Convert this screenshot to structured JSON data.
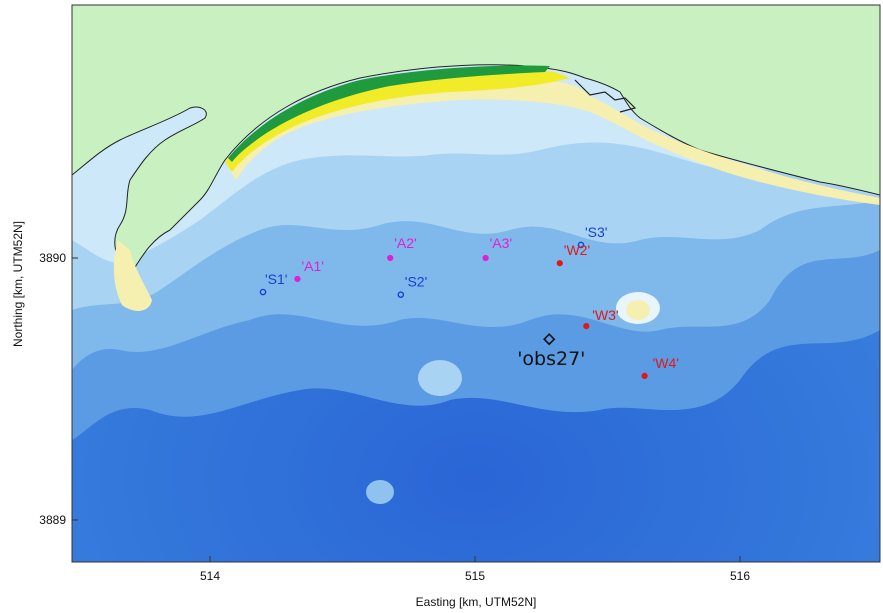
{
  "axes": {
    "xlabel": "Easting [km, UTM52N]",
    "ylabel": "Northing [km, UTM52N]",
    "xticks": [
      "514",
      "515",
      "516"
    ],
    "yticks": [
      "3890",
      "3889"
    ]
  },
  "colors": {
    "land": "#c8f0c0",
    "sand": "#f5efb0",
    "dune_yellow": "#f2ec28",
    "dune_green": "#1f9a3c",
    "shallow": "#d6eefa",
    "mid": "#8fc8ec",
    "deep": "#3a7fdc",
    "deepest": "#2f6fd8"
  },
  "stations": {
    "S1": {
      "label": "'S1'",
      "color": "#1a3fd0",
      "x": 514.2,
      "y": 3889.87
    },
    "S2": {
      "label": "'S2'",
      "color": "#1a3fd0",
      "x": 514.72,
      "y": 3889.86
    },
    "S3": {
      "label": "'S3'",
      "color": "#1a3fd0",
      "x": 515.4,
      "y": 3890.05
    },
    "A1": {
      "label": "'A1'",
      "color": "#e020d0",
      "x": 514.33,
      "y": 3889.92
    },
    "A2": {
      "label": "'A2'",
      "color": "#e020d0",
      "x": 514.68,
      "y": 3890.0
    },
    "A3": {
      "label": "'A3'",
      "color": "#e020d0",
      "x": 515.04,
      "y": 3890.0
    },
    "W2": {
      "label": "'W2'",
      "color": "#e01818",
      "x": 515.32,
      "y": 3889.98
    },
    "W3": {
      "label": "'W3'",
      "color": "#e01818",
      "x": 515.42,
      "y": 3889.74
    },
    "W4": {
      "label": "'W4'",
      "color": "#e01818",
      "x": 515.64,
      "y": 3889.55
    },
    "obs27": {
      "label": "'obs27'",
      "color": "#111111",
      "x": 515.28,
      "y": 3889.69
    }
  }
}
